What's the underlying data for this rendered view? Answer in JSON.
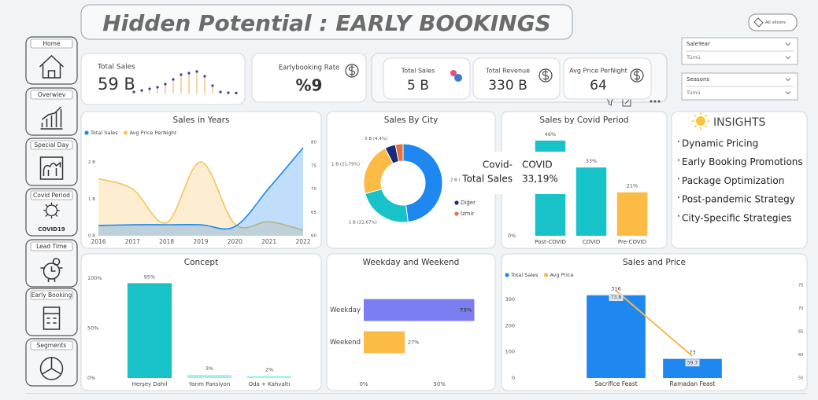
{
  "header": {
    "title": "Hidden Potential : EARLY BOOKINGS",
    "slicer_button": "All slicers"
  },
  "nav": [
    "Home",
    "Overwiev",
    "Special Day",
    "Covid Period",
    "Lead Time",
    "Early Booking",
    "Segments"
  ],
  "covid_icon_label": "COVID19",
  "kpis": [
    {
      "label": "Total Sales",
      "value": "59 B",
      "trend": [
        1,
        2,
        3,
        4,
        6,
        9,
        12,
        13,
        14,
        11,
        5,
        1,
        0.5,
        0.3
      ]
    },
    {
      "label": "Earlybooking Rate",
      "value": "%9"
    },
    {
      "label": "Total Sales",
      "value": "5 B"
    },
    {
      "label": "Total Revenue",
      "value": "330 B"
    },
    {
      "label": "Avg Price PerNight",
      "value": "64"
    }
  ],
  "slicers": [
    {
      "label": "SaleYear",
      "value": "Tümü"
    },
    {
      "label": "Seasons",
      "value": "Tümü"
    }
  ],
  "insights": {
    "title": "INSIGHTS",
    "items": [
      "Dynamic Pricing",
      "Early Booking Promotions",
      "Package Optimization",
      "Post-pandemic Strategy",
      "City-Specific Strategies"
    ]
  },
  "tooltip": {
    "rows": [
      [
        "Covid-",
        "COVID"
      ],
      [
        "Total Sales",
        "33,19%"
      ]
    ]
  },
  "chart_data": [
    {
      "type": "area",
      "title": "Sales in Years",
      "x": [
        2016,
        2017,
        2018,
        2019,
        2020,
        2021,
        2022
      ],
      "xlim": [
        2016,
        2022
      ],
      "xticks": [
        2016,
        2017,
        2018,
        2019,
        2020,
        2021,
        2022
      ],
      "ylim": [
        0,
        2.55
      ],
      "yticks": [
        {
          "value": 0,
          "label": "0 B"
        },
        {
          "value": 1,
          "label": "1 B"
        },
        {
          "value": 2,
          "label": "2 B"
        }
      ],
      "y2lim": [
        60,
        80
      ],
      "y2ticks": [
        60,
        65,
        70,
        75,
        80
      ],
      "series": [
        {
          "name": "Total Sales",
          "color": "#1e88f0",
          "values": [
            0.28,
            0.3,
            0.3,
            0.3,
            0.25,
            1.3,
            2.4
          ]
        },
        {
          "name": "Avg Price PerNight",
          "color": "#f7c35c",
          "axis": "y2",
          "values": [
            72.2,
            70,
            62.8,
            75.8,
            62.5,
            63,
            61.2
          ]
        }
      ]
    },
    {
      "type": "pie",
      "title": "Sales By City",
      "categories": [
        null,
        null,
        null,
        "Diğer",
        "İzmir"
      ],
      "values": [
        47.98,
        22.67,
        21.79,
        4.4,
        3.16
      ],
      "value_labels": [
        "2 B (47,98%)",
        "1 B (22,67%)",
        "1 B (21,79%)",
        "0 B (4,4%)",
        null
      ],
      "colors": [
        "#1e88f0",
        "#17c2c8",
        "#fcbb45",
        "#1a2a78",
        "#e8703a"
      ]
    },
    {
      "type": "bar",
      "title": "Sales by Covid Period",
      "categories": [
        "Post-COVID",
        "COVID",
        "Pre-COVID"
      ],
      "values": [
        46,
        33,
        21
      ],
      "value_labels": [
        "46%",
        "33%",
        "21%"
      ],
      "colors": [
        "#17c2c8",
        "#17c2c8",
        "#fcbb45"
      ],
      "ylim": [
        0,
        49
      ],
      "yticks": [
        {
          "value": 0,
          "label": "0%"
        }
      ]
    },
    {
      "type": "bar",
      "title": "Concept",
      "categories": [
        "Herşey Dahil",
        "Yarım Pansiyon",
        "Oda + Kahvaltı"
      ],
      "values": [
        95,
        3,
        2
      ],
      "value_labels": [
        "95%",
        "3%",
        "2%"
      ],
      "colors": [
        "#17c2c8",
        "#9ff0ea",
        "#9ff0ea"
      ],
      "ylim": [
        0,
        100
      ],
      "yticks": [
        {
          "value": 0,
          "label": "0%"
        },
        {
          "value": 50,
          "label": "50%"
        },
        {
          "value": 100,
          "label": "100%"
        }
      ]
    },
    {
      "type": "hbar",
      "title": "Weekday and Weekend",
      "categories": [
        "Weekday",
        "Weekend"
      ],
      "values": [
        73,
        27
      ],
      "value_labels": [
        "73%",
        "27%"
      ],
      "colors": [
        "#7b7ef0",
        "#fcbb45"
      ],
      "xlim": [
        0,
        79
      ],
      "xticks": [
        {
          "value": 0,
          "label": "0%"
        },
        {
          "value": 50,
          "label": "50%"
        }
      ]
    },
    {
      "type": "combo",
      "title": "Sales and Price",
      "categories": [
        "Sacrifice Feast",
        "Ramadan Feast"
      ],
      "ylim": [
        0,
        363
      ],
      "yticks": [
        0,
        100,
        200,
        300
      ],
      "y2lim": [
        55,
        75.5
      ],
      "y2ticks": [
        55,
        60,
        65,
        70,
        75
      ],
      "series": [
        {
          "name": "Total Sales",
          "color": "#1e88f0",
          "values": [
            316,
            73
          ]
        },
        {
          "name": "Avg Price",
          "color": "#f7b84a",
          "axis": "y2",
          "values": [
            73.8,
            59.7
          ]
        }
      ]
    }
  ]
}
